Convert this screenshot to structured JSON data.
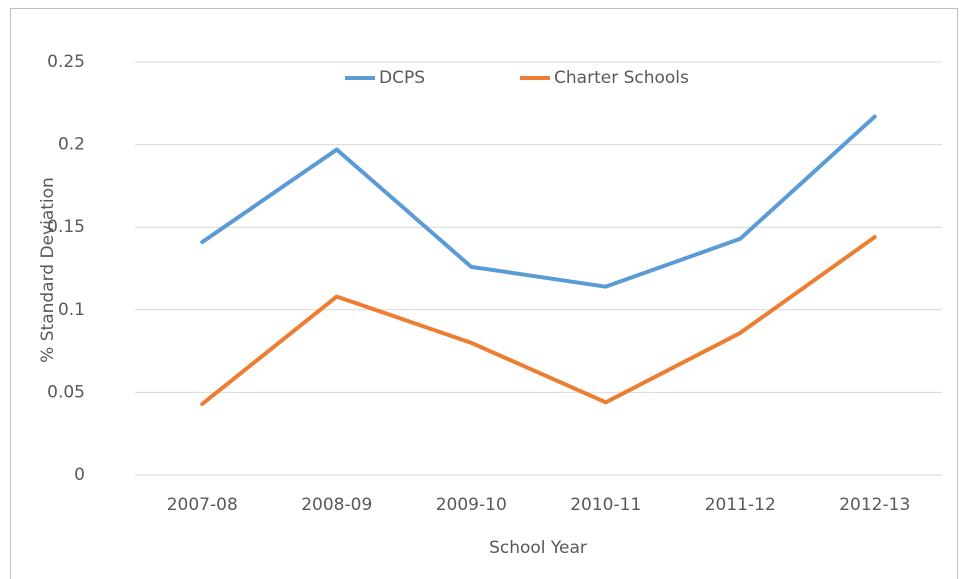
{
  "chart_data": {
    "type": "line",
    "categories": [
      "2007-08",
      "2008-09",
      "2009-10",
      "2010-11",
      "2011-12",
      "2012-13"
    ],
    "series": [
      {
        "name": "DCPS",
        "color": "#5b9bd5",
        "values": [
          0.141,
          0.197,
          0.126,
          0.114,
          0.143,
          0.217
        ]
      },
      {
        "name": "Charter Schools",
        "color": "#ed7d31",
        "values": [
          0.043,
          0.108,
          0.08,
          0.044,
          0.086,
          0.144
        ]
      }
    ],
    "x_label": "School Year",
    "y_label": "% Standard Deviation",
    "ylim": [
      0,
      0.25
    ],
    "yticks": [
      0,
      0.05,
      0.1,
      0.15,
      0.2,
      0.25
    ],
    "grid": true,
    "legend": "top"
  }
}
